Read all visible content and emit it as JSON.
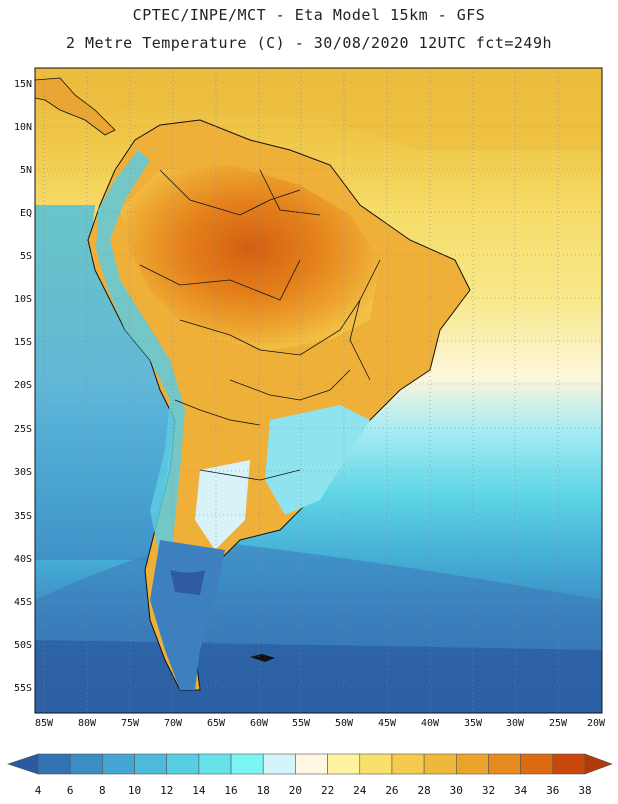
{
  "header": {
    "line1": "CPTEC/INPE/MCT -  Eta Model 15km - GFS",
    "line2": "2 Metre Temperature (C) - 30/08/2020 12UTC fct=249h"
  },
  "map": {
    "lat_labels": [
      "15N",
      "10N",
      "5N",
      "EQ",
      "5S",
      "10S",
      "15S",
      "20S",
      "25S",
      "30S",
      "35S",
      "40S",
      "45S",
      "50S",
      "55S"
    ],
    "lon_labels": [
      "85W",
      "80W",
      "75W",
      "70W",
      "65W",
      "60W",
      "55W",
      "50W",
      "45W",
      "40W",
      "35W",
      "30W",
      "25W",
      "20W"
    ]
  },
  "colorbar": {
    "ticks": [
      "4",
      "6",
      "8",
      "10",
      "12",
      "14",
      "16",
      "18",
      "20",
      "22",
      "24",
      "26",
      "28",
      "30",
      "32",
      "34",
      "36",
      "38"
    ],
    "colors": [
      "#2a5aa0",
      "#3373b4",
      "#3b8dc4",
      "#44a4d2",
      "#4dbadc",
      "#57cfe3",
      "#66e2eb",
      "#7af5f3",
      "#d2f4fa",
      "#fff8e2",
      "#fff3a0",
      "#f9df6c",
      "#f4cb4f",
      "#efb73b",
      "#eba42b",
      "#e6891f",
      "#de6a10",
      "#c9470a",
      "#b03a08"
    ]
  }
}
